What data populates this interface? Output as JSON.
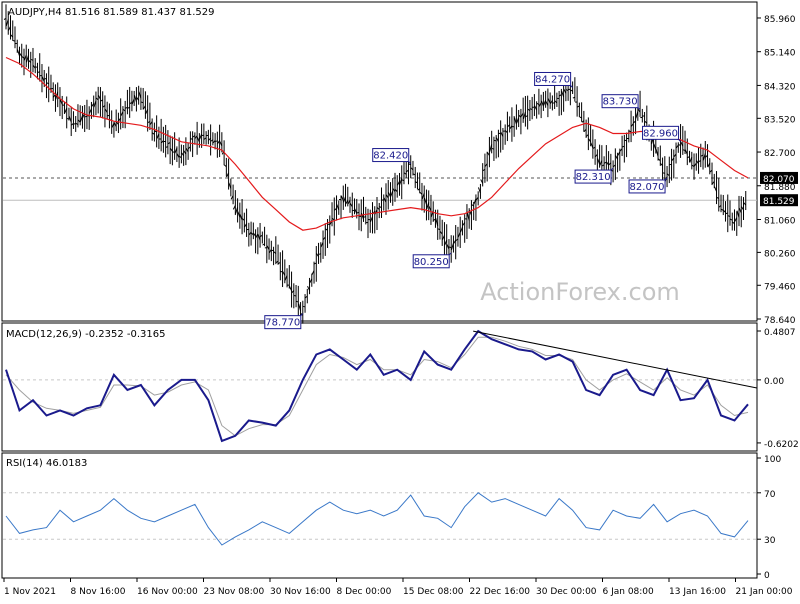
{
  "header": {
    "symbol_line": "AUDJPY,H4  81.516 81.589 81.437 81.529"
  },
  "watermark": "ActionForex.com",
  "colors": {
    "price": "#000000",
    "moving_average": "#e41a1c",
    "macd": "#1a1a8c",
    "macd_signal": "#a0a0a0",
    "rsi": "#3a78c8",
    "label_border": "#1a1a8c",
    "grid": "#c8c8c8",
    "level_line": "#555555",
    "watermark": "#c4c4c4"
  },
  "chart_data": [
    {
      "type": "bar",
      "name_shown": "AUDJPY,H4",
      "ohlc_readout": {
        "open": 81.516,
        "high": 81.589,
        "low": 81.437,
        "close": 81.529
      },
      "y_ticks": [
        "85.960",
        "85.140",
        "84.320",
        "83.520",
        "82.700",
        "81.880",
        "81.060",
        "80.260",
        "79.460",
        "78.640"
      ],
      "ylim": [
        78.64,
        86.3
      ],
      "x_ticks": [
        "1 Nov 2021",
        "8 Nov 16:00",
        "16 Nov 00:00",
        "23 Nov 08:00",
        "30 Nov 16:00",
        "8 Dec 00:00",
        "15 Dec 08:00",
        "22 Dec 16:00",
        "30 Dec 00:00",
        "6 Jan 08:00",
        "13 Jan 16:00",
        "21 Jan 00:00"
      ],
      "close_path": [
        86.0,
        85.1,
        84.9,
        84.4,
        84.0,
        83.4,
        83.6,
        84.0,
        83.3,
        83.8,
        84.1,
        83.2,
        82.9,
        82.6,
        83.0,
        83.1,
        82.9,
        81.4,
        80.8,
        80.6,
        80.2,
        79.5,
        78.8,
        80.0,
        80.9,
        81.6,
        81.3,
        81.0,
        81.5,
        81.8,
        82.4,
        81.6,
        81.0,
        80.3,
        80.9,
        81.6,
        82.8,
        83.2,
        83.5,
        83.7,
        83.9,
        84.0,
        84.27,
        83.2,
        82.5,
        82.31,
        83.0,
        83.73,
        83.0,
        82.07,
        82.96,
        82.4,
        82.6,
        81.4,
        81.0,
        81.529
      ],
      "moving_average": [
        85.0,
        84.85,
        84.6,
        84.3,
        84.0,
        83.75,
        83.6,
        83.55,
        83.45,
        83.4,
        83.35,
        83.25,
        83.1,
        82.95,
        82.9,
        82.85,
        82.75,
        82.4,
        82.0,
        81.6,
        81.3,
        81.0,
        80.8,
        80.85,
        81.0,
        81.1,
        81.15,
        81.2,
        81.25,
        81.3,
        81.35,
        81.3,
        81.2,
        81.15,
        81.2,
        81.35,
        81.6,
        81.95,
        82.3,
        82.6,
        82.9,
        83.1,
        83.3,
        83.4,
        83.3,
        83.15,
        83.15,
        83.2,
        83.2,
        83.05,
        83.0,
        82.85,
        82.75,
        82.5,
        82.25,
        82.07
      ],
      "levels": [
        {
          "value": 82.07,
          "label": "82.070"
        },
        {
          "value": 81.529,
          "label": "81.529"
        }
      ],
      "annotations": [
        {
          "label": "82.420",
          "value": 82.42
        },
        {
          "label": "78.770",
          "value": 78.77
        },
        {
          "label": "80.250",
          "value": 80.25
        },
        {
          "label": "84.270",
          "value": 84.27
        },
        {
          "label": "82.310",
          "value": 82.31
        },
        {
          "label": "83.730",
          "value": 83.73
        },
        {
          "label": "82.070",
          "value": 82.07
        },
        {
          "label": "82.960",
          "value": 82.96
        }
      ]
    },
    {
      "type": "line",
      "name_shown": "MACD(12,26,9) -0.2352 -0.3165",
      "y_ticks": [
        "0.4807",
        "0.00",
        "-0.6202"
      ],
      "ylim": [
        -0.68,
        0.53
      ],
      "series": [
        {
          "role": "macd",
          "values": [
            0.1,
            -0.3,
            -0.2,
            -0.35,
            -0.3,
            -0.35,
            -0.28,
            -0.25,
            0.05,
            -0.1,
            -0.05,
            -0.25,
            -0.1,
            0.0,
            0.0,
            -0.2,
            -0.6,
            -0.55,
            -0.4,
            -0.42,
            -0.45,
            -0.3,
            0.0,
            0.25,
            0.3,
            0.2,
            0.1,
            0.25,
            0.05,
            0.1,
            0.0,
            0.28,
            0.15,
            0.1,
            0.3,
            0.48,
            0.4,
            0.35,
            0.3,
            0.28,
            0.2,
            0.25,
            0.18,
            -0.1,
            -0.15,
            0.05,
            0.1,
            -0.1,
            -0.15,
            0.1,
            -0.2,
            -0.18,
            0.0,
            -0.35,
            -0.4,
            -0.24
          ]
        },
        {
          "role": "signal",
          "values": [
            0.05,
            -0.1,
            -0.22,
            -0.28,
            -0.3,
            -0.33,
            -0.3,
            -0.27,
            -0.05,
            -0.05,
            -0.06,
            -0.15,
            -0.12,
            -0.05,
            -0.02,
            -0.1,
            -0.45,
            -0.55,
            -0.48,
            -0.44,
            -0.44,
            -0.35,
            -0.1,
            0.15,
            0.25,
            0.22,
            0.15,
            0.2,
            0.1,
            0.1,
            0.05,
            0.2,
            0.18,
            0.12,
            0.25,
            0.42,
            0.42,
            0.38,
            0.33,
            0.3,
            0.24,
            0.24,
            0.2,
            0.0,
            -0.1,
            0.0,
            0.06,
            -0.02,
            -0.1,
            0.02,
            -0.1,
            -0.15,
            -0.05,
            -0.25,
            -0.35,
            -0.32
          ]
        }
      ],
      "trendline": {
        "start": {
          "index": 35,
          "value": 0.48
        },
        "end": {
          "index": 55,
          "value": -0.08
        }
      }
    },
    {
      "type": "line",
      "name_shown": "RSI(14) 46.0183",
      "y_ticks": [
        "100",
        "70",
        "30",
        "0"
      ],
      "ylim": [
        0,
        100
      ],
      "levels": [
        70,
        30
      ],
      "values": [
        50,
        35,
        38,
        40,
        55,
        45,
        50,
        55,
        65,
        55,
        48,
        45,
        50,
        55,
        60,
        40,
        25,
        32,
        38,
        45,
        40,
        35,
        45,
        55,
        62,
        55,
        52,
        55,
        50,
        55,
        68,
        50,
        48,
        40,
        58,
        70,
        62,
        65,
        60,
        55,
        50,
        65,
        55,
        40,
        38,
        55,
        50,
        48,
        60,
        45,
        52,
        55,
        50,
        35,
        32,
        46.02
      ]
    }
  ]
}
